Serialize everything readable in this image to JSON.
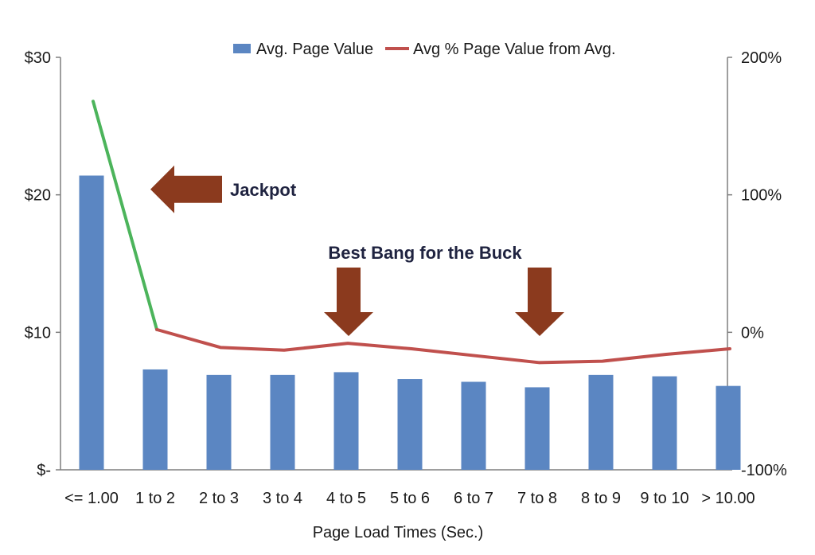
{
  "chart_data": {
    "type": "bar",
    "categories": [
      "<= 1.00",
      "1 to 2",
      "2 to 3",
      "3 to 4",
      "4 to 5",
      "5 to 6",
      "6 to 7",
      "7 to 8",
      "8 to 9",
      "9 to 10",
      "> 10.00"
    ],
    "series": [
      {
        "name": "Avg. Page Value",
        "type": "bar",
        "axis": "left",
        "color": "#5b86c2",
        "values": [
          21.4,
          7.3,
          6.9,
          6.9,
          7.1,
          6.6,
          6.4,
          6.0,
          6.9,
          6.8,
          6.1
        ]
      },
      {
        "name": "Avg % Page Value from Avg.",
        "type": "line",
        "axis": "right",
        "color": "#c0504d",
        "first_segment_color": "#4cb45b",
        "values": [
          168,
          2,
          -11,
          -13,
          -8,
          -12,
          -17,
          -22,
          -21,
          -16,
          -12
        ]
      }
    ],
    "xlabel": "Page Load Times (Sec.)",
    "ylim_left": [
      0,
      30
    ],
    "ylim_right": [
      -100,
      200
    ],
    "yticks_left": [
      "$-",
      "$10",
      "$20",
      "$30"
    ],
    "yticks_right": [
      "-100%",
      "0%",
      "100%",
      "200%"
    ],
    "legend_position": "top",
    "grid": false,
    "annotations": [
      {
        "text": "Jackpot",
        "type": "left-arrow",
        "category_index": 1,
        "y_left": 20.4,
        "color": "#8b3a1e"
      },
      {
        "text": "Best Bang for the Buck",
        "type": "label"
      },
      {
        "type": "down-arrow",
        "category_index": 4,
        "color": "#8b3a1e"
      },
      {
        "type": "down-arrow",
        "category_index": 7,
        "color": "#8b3a1e"
      }
    ]
  }
}
